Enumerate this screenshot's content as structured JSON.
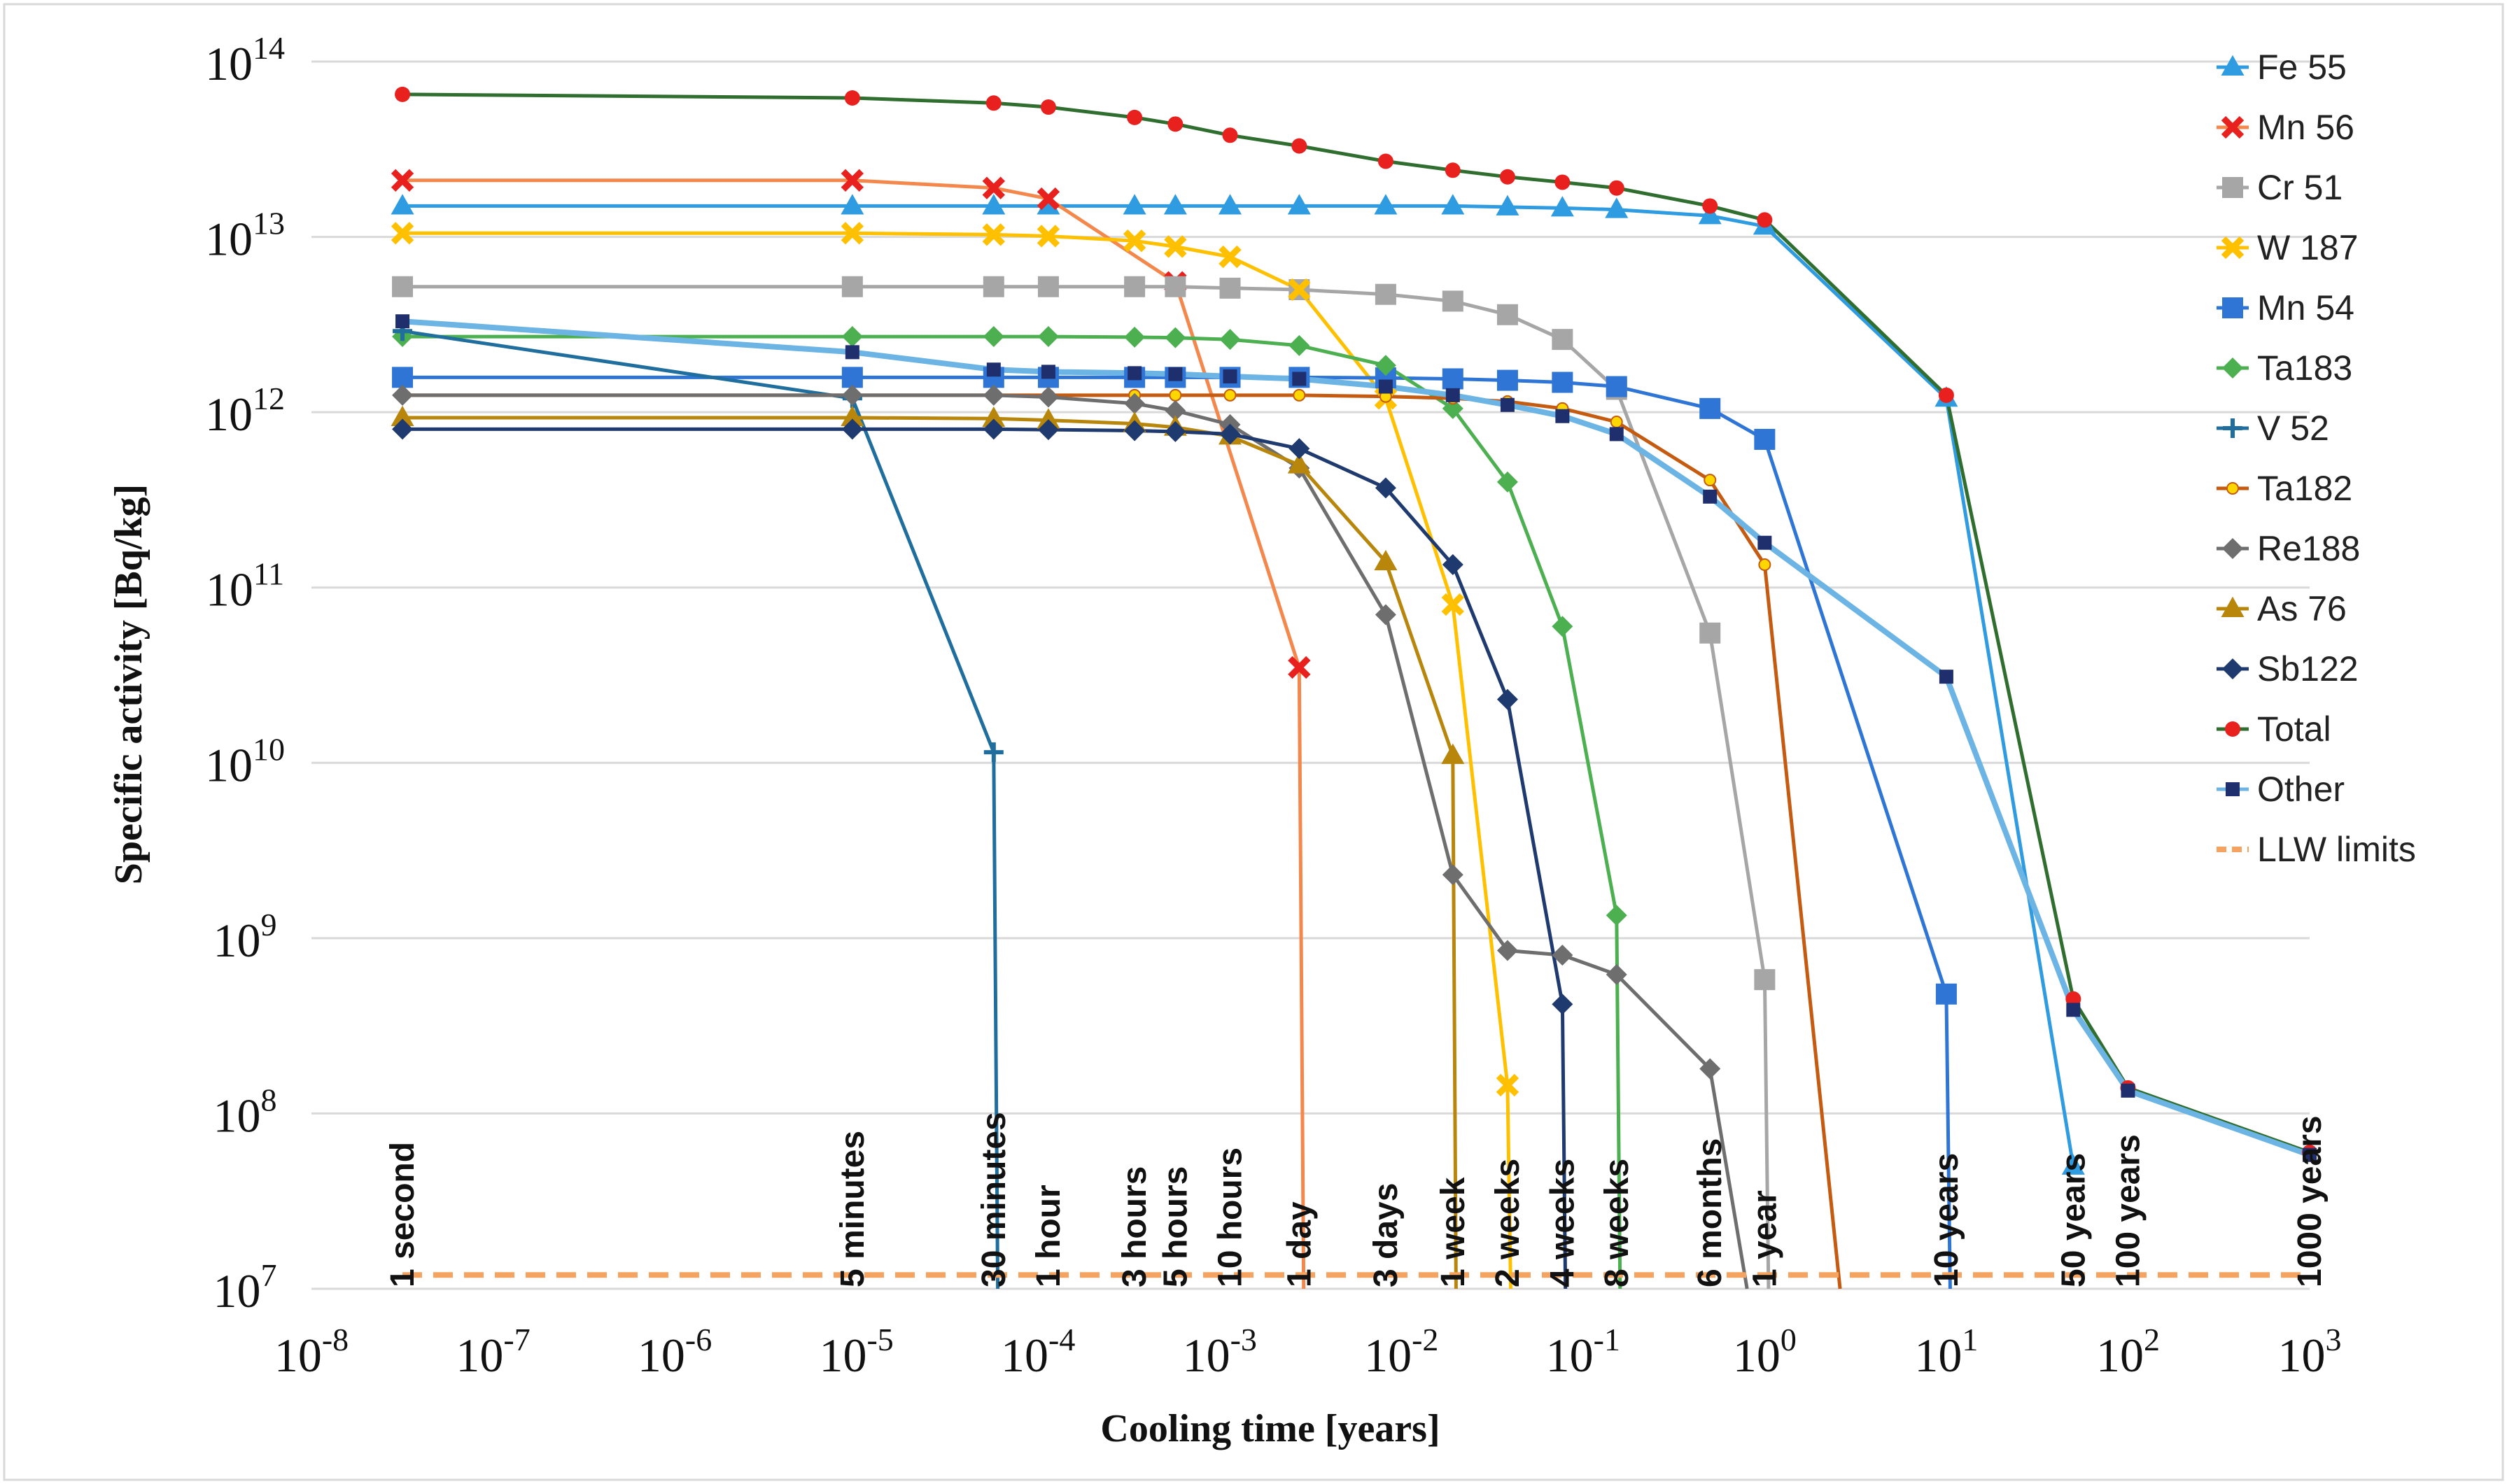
{
  "chart_data": {
    "type": "line",
    "xlabel": "Cooling time [years]",
    "ylabel": "Specific activity [Bq/kg]",
    "x_scale": "log",
    "y_scale": "log",
    "xlim": [
      1e-08,
      1000
    ],
    "ylim": [
      10000000.0,
      100000000000000.0
    ],
    "x_ticks": [
      {
        "base": "10",
        "exp": "-8"
      },
      {
        "base": "10",
        "exp": "-7"
      },
      {
        "base": "10",
        "exp": "-6"
      },
      {
        "base": "10",
        "exp": "-5"
      },
      {
        "base": "10",
        "exp": "-4"
      },
      {
        "base": "10",
        "exp": "-3"
      },
      {
        "base": "10",
        "exp": "-2"
      },
      {
        "base": "10",
        "exp": "-1"
      },
      {
        "base": "10",
        "exp": "0"
      },
      {
        "base": "10",
        "exp": "1"
      },
      {
        "base": "10",
        "exp": "2"
      },
      {
        "base": "10",
        "exp": "3"
      }
    ],
    "y_ticks": [
      {
        "base": "10",
        "exp": "7"
      },
      {
        "base": "10",
        "exp": "8"
      },
      {
        "base": "10",
        "exp": "9"
      },
      {
        "base": "10",
        "exp": "10"
      },
      {
        "base": "10",
        "exp": "11"
      },
      {
        "base": "10",
        "exp": "12"
      },
      {
        "base": "10",
        "exp": "13"
      },
      {
        "base": "10",
        "exp": "14"
      }
    ],
    "grid": "horizontal",
    "legend_position": "right",
    "time_annotations": [
      {
        "label": "1 second",
        "x": 3.17e-08
      },
      {
        "label": "5 minutes",
        "x": 9.5e-06
      },
      {
        "label": "30 minutes",
        "x": 5.7e-05
      },
      {
        "label": "1 hour",
        "x": 0.000114
      },
      {
        "label": "3 hours",
        "x": 0.00034
      },
      {
        "label": "5 hours",
        "x": 0.00057
      },
      {
        "label": "10 hours",
        "x": 0.00114
      },
      {
        "label": "1 day",
        "x": 0.00274
      },
      {
        "label": "3 days",
        "x": 0.0082
      },
      {
        "label": "1 week",
        "x": 0.0192
      },
      {
        "label": "2 weeks",
        "x": 0.0384
      },
      {
        "label": "4 weeks",
        "x": 0.077
      },
      {
        "label": "8 weeks",
        "x": 0.153
      },
      {
        "label": "6 months",
        "x": 0.5
      },
      {
        "label": "1 year",
        "x": 1
      },
      {
        "label": "10 years",
        "x": 10
      },
      {
        "label": "50 years",
        "x": 50
      },
      {
        "label": "100 years",
        "x": 100
      },
      {
        "label": "1000 years",
        "x": 1000
      }
    ],
    "series": [
      {
        "name": "Fe 55",
        "color": "#2F9BE0",
        "marker": "triangle",
        "points": [
          [
            3.17e-08,
            15000000000000.0
          ],
          [
            9.5e-06,
            15000000000000.0
          ],
          [
            5.7e-05,
            15000000000000.0
          ],
          [
            0.000114,
            15000000000000.0
          ],
          [
            0.00034,
            15000000000000.0
          ],
          [
            0.00057,
            15000000000000.0
          ],
          [
            0.00114,
            15000000000000.0
          ],
          [
            0.00274,
            15000000000000.0
          ],
          [
            0.0082,
            15000000000000.0
          ],
          [
            0.0192,
            15000000000000.0
          ],
          [
            0.0384,
            14800000000000.0
          ],
          [
            0.077,
            14600000000000.0
          ],
          [
            0.153,
            14300000000000.0
          ],
          [
            0.5,
            13200000000000.0
          ],
          [
            1,
            11500000000000.0
          ],
          [
            10,
            1200000000000.0
          ],
          [
            50,
            50000000.0
          ]
        ]
      },
      {
        "name": "Mn 56",
        "color": "#F4874B",
        "marker": "x",
        "points": [
          [
            3.17e-08,
            21000000000000.0
          ],
          [
            9.5e-06,
            21000000000000.0
          ],
          [
            5.7e-05,
            19000000000000.0
          ],
          [
            0.000114,
            16500000000000.0
          ],
          [
            0.00057,
            5500000000000.0
          ],
          [
            0.00274,
            35000000000.0
          ],
          [
            0.0029,
            10000000.0
          ]
        ]
      },
      {
        "name": "Cr 51",
        "color": "#A6A6A6",
        "marker": "square",
        "points": [
          [
            3.17e-08,
            5200000000000.0
          ],
          [
            9.5e-06,
            5200000000000.0
          ],
          [
            5.7e-05,
            5200000000000.0
          ],
          [
            0.000114,
            5200000000000.0
          ],
          [
            0.00034,
            5200000000000.0
          ],
          [
            0.00057,
            5200000000000.0
          ],
          [
            0.00114,
            5100000000000.0
          ],
          [
            0.00274,
            5000000000000.0
          ],
          [
            0.0082,
            4700000000000.0
          ],
          [
            0.0192,
            4300000000000.0
          ],
          [
            0.0384,
            3600000000000.0
          ],
          [
            0.077,
            2600000000000.0
          ],
          [
            0.153,
            1350000000000.0
          ],
          [
            0.5,
            55000000000.0
          ],
          [
            1,
            580000000.0
          ],
          [
            1.05,
            10000000.0
          ]
        ]
      },
      {
        "name": "W 187",
        "color": "#FFC000",
        "marker": "x",
        "points": [
          [
            3.17e-08,
            10500000000000.0
          ],
          [
            9.5e-06,
            10500000000000.0
          ],
          [
            5.7e-05,
            10300000000000.0
          ],
          [
            0.000114,
            10100000000000.0
          ],
          [
            0.00034,
            9500000000000.0
          ],
          [
            0.00057,
            8800000000000.0
          ],
          [
            0.00114,
            7700000000000.0
          ],
          [
            0.00274,
            5000000000000.0
          ],
          [
            0.0082,
            1200000000000.0
          ],
          [
            0.0192,
            80000000000.0
          ],
          [
            0.0384,
            145000000.0
          ],
          [
            0.04,
            10000000.0
          ]
        ]
      },
      {
        "name": "Mn 54",
        "color": "#2E75D6",
        "marker": "square",
        "points": [
          [
            3.17e-08,
            1580000000000.0
          ],
          [
            9.5e-06,
            1580000000000.0
          ],
          [
            5.7e-05,
            1580000000000.0
          ],
          [
            0.000114,
            1580000000000.0
          ],
          [
            0.00034,
            1580000000000.0
          ],
          [
            0.00057,
            1580000000000.0
          ],
          [
            0.00114,
            1580000000000.0
          ],
          [
            0.00274,
            1580000000000.0
          ],
          [
            0.0082,
            1570000000000.0
          ],
          [
            0.0192,
            1550000000000.0
          ],
          [
            0.0384,
            1520000000000.0
          ],
          [
            0.077,
            1480000000000.0
          ],
          [
            0.153,
            1400000000000.0
          ],
          [
            0.5,
            1050000000000.0
          ],
          [
            1,
            700000000000.0
          ],
          [
            10,
            480000000.0
          ],
          [
            10.5,
            10000000.0
          ]
        ]
      },
      {
        "name": "Ta183",
        "color": "#4CAF50",
        "marker": "diamond",
        "points": [
          [
            3.17e-08,
            2700000000000.0
          ],
          [
            9.5e-06,
            2700000000000.0
          ],
          [
            5.7e-05,
            2700000000000.0
          ],
          [
            0.000114,
            2700000000000.0
          ],
          [
            0.00034,
            2680000000000.0
          ],
          [
            0.00057,
            2660000000000.0
          ],
          [
            0.00114,
            2600000000000.0
          ],
          [
            0.00274,
            2400000000000.0
          ],
          [
            0.0082,
            1850000000000.0
          ],
          [
            0.0192,
            1050000000000.0
          ],
          [
            0.0384,
            400000000000.0
          ],
          [
            0.077,
            60000000000.0
          ],
          [
            0.153,
            1350000000.0
          ],
          [
            0.16,
            10000000.0
          ]
        ]
      },
      {
        "name": "V  52",
        "color": "#1F6E9E",
        "marker": "plus",
        "points": [
          [
            3.17e-08,
            2900000000000.0
          ],
          [
            9.5e-06,
            1200000000000.0
          ],
          [
            5.7e-05,
            11500000000.0
          ],
          [
            6e-05,
            10000000.0
          ]
        ]
      },
      {
        "name": "Ta182",
        "color": "#C55A11",
        "marker": "dot",
        "points": [
          [
            3.17e-08,
            1250000000000.0
          ],
          [
            9.5e-06,
            1250000000000.0
          ],
          [
            5.7e-05,
            1250000000000.0
          ],
          [
            0.000114,
            1250000000000.0
          ],
          [
            0.00034,
            1250000000000.0
          ],
          [
            0.00057,
            1250000000000.0
          ],
          [
            0.00114,
            1250000000000.0
          ],
          [
            0.00274,
            1250000000000.0
          ],
          [
            0.0082,
            1230000000000.0
          ],
          [
            0.0192,
            1200000000000.0
          ],
          [
            0.0384,
            1150000000000.0
          ],
          [
            0.077,
            1050000000000.0
          ],
          [
            0.153,
            880000000000.0
          ],
          [
            0.5,
            410000000000.0
          ],
          [
            1,
            135000000000.0
          ],
          [
            2.6,
            10000000.0
          ]
        ]
      },
      {
        "name": "Re188",
        "color": "#6E6E6E",
        "marker": "diamond",
        "points": [
          [
            3.17e-08,
            1250000000000.0
          ],
          [
            9.5e-06,
            1250000000000.0
          ],
          [
            5.7e-05,
            1250000000000.0
          ],
          [
            0.000114,
            1220000000000.0
          ],
          [
            0.00034,
            1120000000000.0
          ],
          [
            0.00057,
            1020000000000.0
          ],
          [
            0.00114,
            850000000000.0
          ],
          [
            0.00274,
            480000000000.0
          ],
          [
            0.0082,
            70000000000.0
          ],
          [
            0.0192,
            2300000000.0
          ],
          [
            0.0384,
            850000000.0
          ],
          [
            0.077,
            800000000.0
          ],
          [
            0.153,
            620000000.0
          ],
          [
            0.5,
            180000000.0
          ],
          [
            0.8,
            10000000.0
          ]
        ]
      },
      {
        "name": "As 76",
        "color": "#B8860B",
        "marker": "triangle",
        "points": [
          [
            3.17e-08,
            930000000000.0
          ],
          [
            9.5e-06,
            930000000000.0
          ],
          [
            5.7e-05,
            920000000000.0
          ],
          [
            0.000114,
            900000000000.0
          ],
          [
            0.00034,
            860000000000.0
          ],
          [
            0.00057,
            820000000000.0
          ],
          [
            0.00114,
            730000000000.0
          ],
          [
            0.00274,
            500000000000.0
          ],
          [
            0.0082,
            140000000000.0
          ],
          [
            0.0192,
            11000000000.0
          ],
          [
            0.02,
            10000000.0
          ]
        ]
      },
      {
        "name": "Sb122",
        "color": "#1F3A6E",
        "marker": "diamond",
        "points": [
          [
            3.17e-08,
            800000000000.0
          ],
          [
            9.5e-06,
            800000000000.0
          ],
          [
            5.7e-05,
            800000000000.0
          ],
          [
            0.000114,
            795000000000.0
          ],
          [
            0.00034,
            785000000000.0
          ],
          [
            0.00057,
            775000000000.0
          ],
          [
            0.00114,
            750000000000.0
          ],
          [
            0.00274,
            620000000000.0
          ],
          [
            0.0082,
            370000000000.0
          ],
          [
            0.0192,
            135000000000.0
          ],
          [
            0.0384,
            23000000000.0
          ],
          [
            0.077,
            420000000.0
          ],
          [
            0.08,
            10000000.0
          ]
        ]
      },
      {
        "name": "Total",
        "color": "#2F6E2F",
        "marker": "dot-red",
        "points": [
          [
            3.17e-08,
            65000000000000.0
          ],
          [
            9.5e-06,
            62000000000000.0
          ],
          [
            5.7e-05,
            58000000000000.0
          ],
          [
            0.000114,
            55000000000000.0
          ],
          [
            0.00034,
            48000000000000.0
          ],
          [
            0.00057,
            44000000000000.0
          ],
          [
            0.00114,
            38000000000000.0
          ],
          [
            0.00274,
            33000000000000.0
          ],
          [
            0.0082,
            27000000000000.0
          ],
          [
            0.0192,
            24000000000000.0
          ],
          [
            0.0384,
            22000000000000.0
          ],
          [
            0.077,
            20500000000000.0
          ],
          [
            0.153,
            19000000000000.0
          ],
          [
            0.5,
            15000000000000.0
          ],
          [
            1,
            12500000000000.0
          ],
          [
            10,
            1250000000000.0
          ],
          [
            50,
            450000000.0
          ],
          [
            100,
            140000000.0
          ],
          [
            1000,
            60000000.0
          ]
        ]
      },
      {
        "name": "Other",
        "color": "#6CB4E4",
        "marker": "square-navy",
        "points": [
          [
            3.17e-08,
            3300000000000.0
          ],
          [
            9.5e-06,
            2200000000000.0
          ],
          [
            5.7e-05,
            1750000000000.0
          ],
          [
            0.000114,
            1700000000000.0
          ],
          [
            0.00034,
            1670000000000.0
          ],
          [
            0.00057,
            1650000000000.0
          ],
          [
            0.00114,
            1600000000000.0
          ],
          [
            0.00274,
            1550000000000.0
          ],
          [
            0.0082,
            1400000000000.0
          ],
          [
            0.0192,
            1250000000000.0
          ],
          [
            0.0384,
            1100000000000.0
          ],
          [
            0.077,
            950000000000.0
          ],
          [
            0.153,
            750000000000.0
          ],
          [
            0.5,
            330000000000.0
          ],
          [
            1,
            180000000000.0
          ],
          [
            10,
            31000000000.0
          ],
          [
            50,
            390000000.0
          ],
          [
            100,
            135000000.0
          ],
          [
            1000,
            58000000.0
          ]
        ]
      },
      {
        "name": "LLW limits",
        "color": "#F4A460",
        "marker": "dashed",
        "points": [
          [
            3.17e-08,
            12000000.0
          ],
          [
            1000,
            12000000.0
          ]
        ]
      }
    ]
  }
}
